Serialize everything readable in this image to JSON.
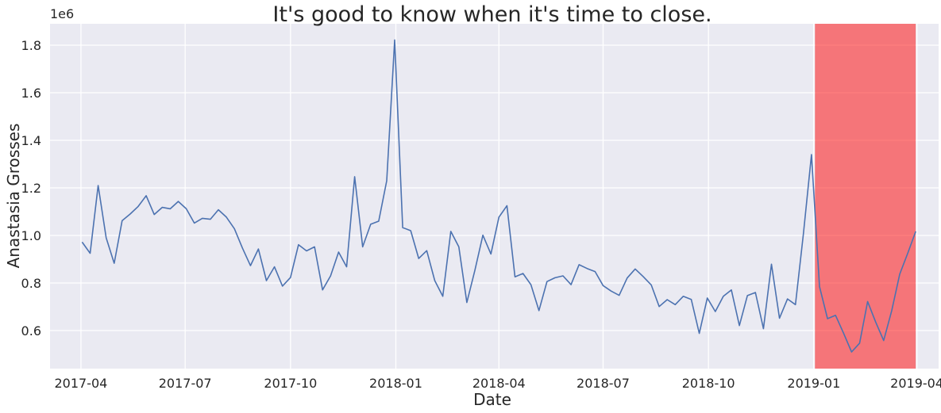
{
  "chart_data": {
    "type": "line",
    "title": "It's good to know when it's time to close.",
    "xlabel": "Date",
    "ylabel": "Anastasia Grosses",
    "y_offset_label": "1e6",
    "ylim": [
      440000,
      1890000
    ],
    "xlim": [
      "2017-03-05",
      "2019-04-20"
    ],
    "grid": true,
    "colors": {
      "background": "#eaeaf2",
      "grid": "#ffffff",
      "line": "#4c72b0",
      "highlight": "#ff0000"
    },
    "x_ticks": [
      "2017-04-01",
      "2017-07-01",
      "2017-10-01",
      "2018-01-01",
      "2018-04-01",
      "2018-07-01",
      "2018-10-01",
      "2019-01-01",
      "2019-04-01"
    ],
    "x_tick_labels": [
      "2017-04",
      "2017-07",
      "2017-10",
      "2018-01",
      "2018-04",
      "2018-07",
      "2018-10",
      "2019-01",
      "2019-04"
    ],
    "y_ticks": [
      600000,
      800000,
      1000000,
      1200000,
      1400000,
      1600000,
      1800000
    ],
    "y_tick_labels": [
      "0.6",
      "0.8",
      "1.0",
      "1.2",
      "1.4",
      "1.6",
      "1.8"
    ],
    "highlight_span": {
      "start": "2019-01-02",
      "end": "2019-03-31",
      "opacity": 0.5
    },
    "series": [
      {
        "x": [
          "2017-04-02",
          "2017-04-09",
          "2017-04-16",
          "2017-04-23",
          "2017-04-30",
          "2017-05-07",
          "2017-05-14",
          "2017-05-21",
          "2017-05-28",
          "2017-06-04",
          "2017-06-11",
          "2017-06-18",
          "2017-06-25",
          "2017-07-02",
          "2017-07-09",
          "2017-07-16",
          "2017-07-23",
          "2017-07-30",
          "2017-08-06",
          "2017-08-13",
          "2017-08-20",
          "2017-08-27",
          "2017-09-03",
          "2017-09-10",
          "2017-09-17",
          "2017-09-24",
          "2017-10-01",
          "2017-10-08",
          "2017-10-15",
          "2017-10-22",
          "2017-10-29",
          "2017-11-05",
          "2017-11-12",
          "2017-11-19",
          "2017-11-26",
          "2017-12-03",
          "2017-12-10",
          "2017-12-17",
          "2017-12-24",
          "2017-12-31",
          "2018-01-07",
          "2018-01-14",
          "2018-01-21",
          "2018-01-28",
          "2018-02-04",
          "2018-02-11",
          "2018-02-18",
          "2018-02-25",
          "2018-03-04",
          "2018-03-11",
          "2018-03-18",
          "2018-03-25",
          "2018-04-01",
          "2018-04-08",
          "2018-04-15",
          "2018-04-22",
          "2018-04-29",
          "2018-05-06",
          "2018-05-13",
          "2018-05-20",
          "2018-05-27",
          "2018-06-03",
          "2018-06-10",
          "2018-06-17",
          "2018-06-24",
          "2018-07-01",
          "2018-07-08",
          "2018-07-15",
          "2018-07-22",
          "2018-07-29",
          "2018-08-05",
          "2018-08-12",
          "2018-08-19",
          "2018-08-26",
          "2018-09-02",
          "2018-09-09",
          "2018-09-16",
          "2018-09-23",
          "2018-09-30",
          "2018-10-07",
          "2018-10-14",
          "2018-10-21",
          "2018-10-28",
          "2018-11-04",
          "2018-11-11",
          "2018-11-18",
          "2018-11-25",
          "2018-12-02",
          "2018-12-09",
          "2018-12-16",
          "2018-12-23",
          "2018-12-30",
          "2019-01-06",
          "2019-01-13",
          "2019-01-20",
          "2019-01-27",
          "2019-02-03",
          "2019-02-10",
          "2019-02-17",
          "2019-02-24",
          "2019-03-03",
          "2019-03-10",
          "2019-03-17",
          "2019-03-24",
          "2019-03-31"
        ],
        "y": [
          972000,
          925000,
          1210000,
          990000,
          883000,
          1062000,
          1090000,
          1122000,
          1167000,
          1088000,
          1118000,
          1112000,
          1143000,
          1112000,
          1052000,
          1072000,
          1068000,
          1108000,
          1077000,
          1028000,
          947000,
          873000,
          943000,
          810000,
          868000,
          787000,
          823000,
          961000,
          935000,
          952000,
          771000,
          830000,
          930000,
          868000,
          1247000,
          952000,
          1047000,
          1060000,
          1230000,
          1822000,
          1033000,
          1020000,
          903000,
          936000,
          810000,
          744000,
          1017000,
          952000,
          718000,
          853000,
          1001000,
          922000,
          1077000,
          1125000,
          826000,
          840000,
          793000,
          684000,
          806000,
          822000,
          830000,
          793000,
          877000,
          861000,
          848000,
          789000,
          766000,
          748000,
          821000,
          859000,
          827000,
          792000,
          701000,
          730000,
          709000,
          744000,
          731000,
          588000,
          737000,
          680000,
          744000,
          771000,
          621000,
          747000,
          760000,
          608000,
          879000,
          652000,
          733000,
          709000,
          1009000,
          1340000,
          785000,
          650000,
          664000,
          589000,
          510000,
          547000,
          722000,
          636000,
          558000,
          683000,
          837000,
          925000,
          1017000
        ]
      }
    ]
  }
}
